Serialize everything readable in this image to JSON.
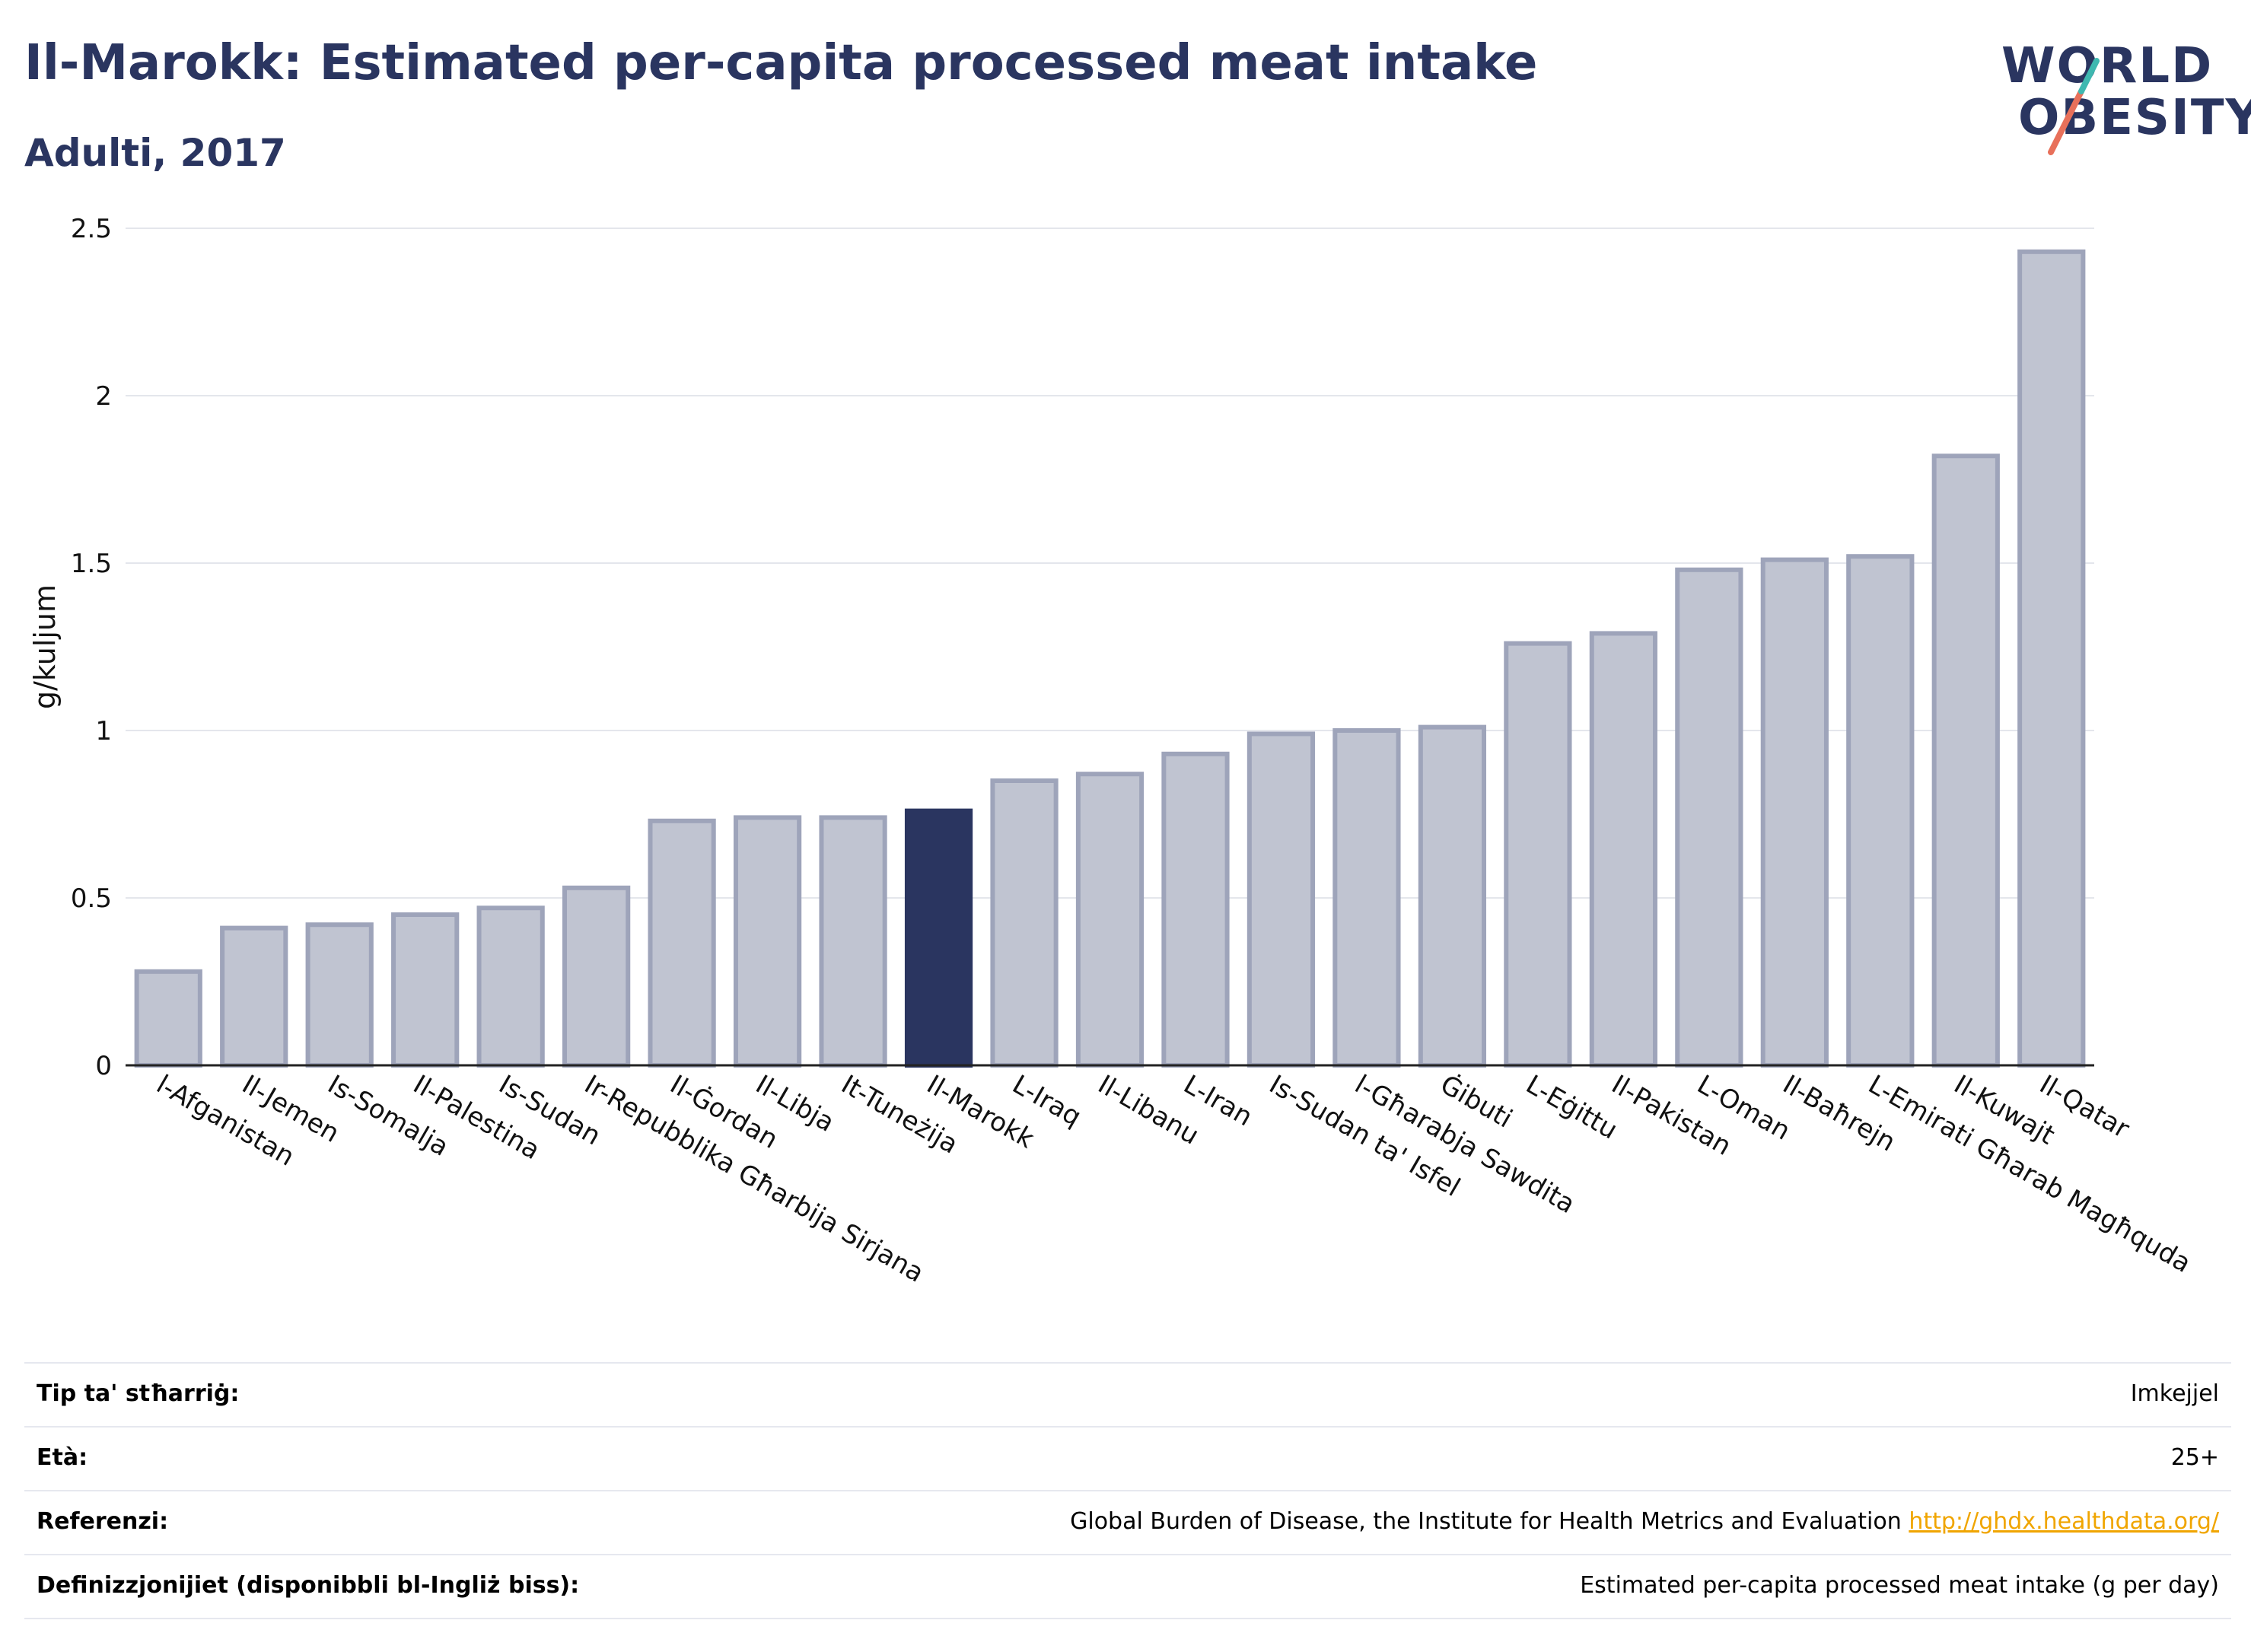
{
  "title": "Il-Marokk: Estimated per-capita processed meat intake",
  "subtitle": "Adulti, 2017",
  "logo": {
    "line1": "WORLD",
    "line2": "OBESITY"
  },
  "colors": {
    "highlight": "#2a3560",
    "bar": "#c0c4d1",
    "bar_edge": "#9ea4ba",
    "text": "#2a3560",
    "link": "#f0a500"
  },
  "chart_data": {
    "type": "bar",
    "ylabel": "g/kuljum",
    "ylim": [
      0,
      2.5
    ],
    "yticks": [
      "0",
      "0.5",
      "1",
      "1.5",
      "2",
      "2.5"
    ],
    "grid": true,
    "highlight": "Il-Marokk",
    "categories": [
      "l-Afganistan",
      "Il-Jemen",
      "Is-Somalja",
      "Il-Palestina",
      "Is-Sudan",
      "Ir-Repubblika Għarbija Sirjana",
      "Il-Ġordan",
      "Il-Libja",
      "It-Tuneżija",
      "Il-Marokk",
      "L-Iraq",
      "Il-Libanu",
      "L-Iran",
      "Is-Sudan ta' Isfel",
      "l-Għarabja Sawdita",
      "Ġibuti",
      "L-Eġittu",
      "Il-Pakistan",
      "L-Oman",
      "Il-Baħrejn",
      "L-Emirati Għarab Magħquda",
      "Il-Kuwajt",
      "Il-Qatar"
    ],
    "values": [
      0.28,
      0.41,
      0.42,
      0.45,
      0.47,
      0.53,
      0.73,
      0.74,
      0.74,
      0.76,
      0.85,
      0.87,
      0.93,
      0.99,
      1.0,
      1.01,
      1.26,
      1.29,
      1.48,
      1.51,
      1.52,
      1.82,
      2.43
    ]
  },
  "info": [
    {
      "key": "Tip ta' stħarriġ:",
      "value": "Imkejjel"
    },
    {
      "key": "Età:",
      "value": "25+"
    },
    {
      "key": "Referenzi:",
      "value": "Global Burden of Disease, the Institute for Health Metrics and Evaluation",
      "link": "http://ghdx.healthdata.org/"
    },
    {
      "key": "Definizzjonijiet (disponibbli bl-Ingliż biss):",
      "value": "Estimated per-capita processed meat intake (g per day)"
    }
  ]
}
